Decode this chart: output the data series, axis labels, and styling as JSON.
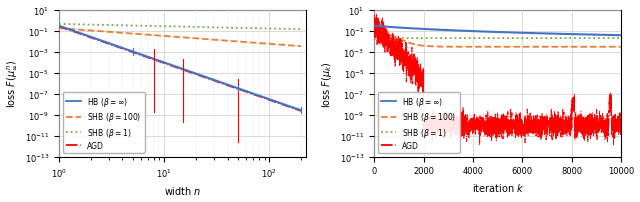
{
  "fig_width": 6.4,
  "fig_height": 2.03,
  "dpi": 100,
  "background_color": "#ffffff",
  "left_xlabel": "width $n$",
  "left_ylabel": "loss $F(\\mu_\\infty^n)$",
  "right_xlabel": "iteration $k$",
  "right_ylabel": "loss $F(\\mu_k)$",
  "right_xlim": [
    0,
    10000
  ],
  "ylim_log": [
    -13,
    1
  ],
  "colors": {
    "HB": "#4472C4",
    "SHB100": "#ED7D31",
    "SHB1": "#70AD47",
    "AGD": "#FF0000"
  },
  "legend_entries": [
    {
      "label": "HB ($\\beta = \\infty$)",
      "color": "#4472C4",
      "ls": "solid"
    },
    {
      "label": "SHB ($\\beta = 100$)",
      "color": "#ED7D31",
      "ls": "dashed"
    },
    {
      "label": "SHB ($\\beta = 1$)",
      "color": "#70AD47",
      "ls": "dotted"
    },
    {
      "label": "AGD",
      "color": "#FF0000",
      "ls": "dashdot"
    }
  ]
}
